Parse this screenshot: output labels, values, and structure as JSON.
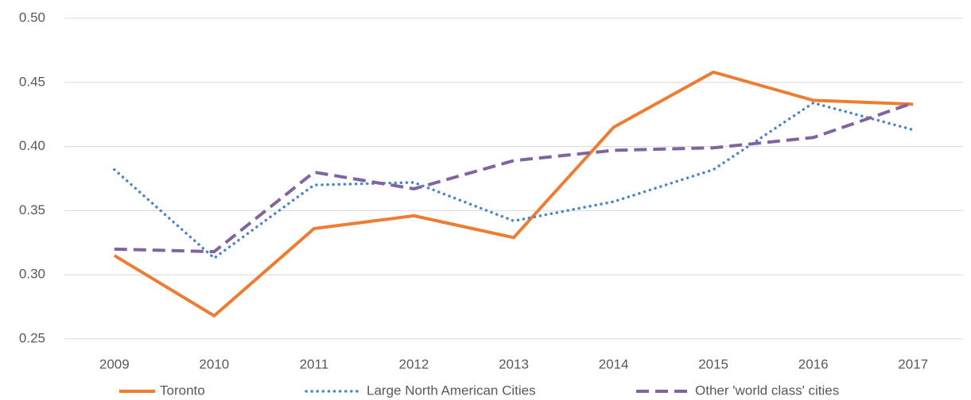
{
  "chart_data": {
    "type": "line",
    "categories": [
      "2009",
      "2010",
      "2011",
      "2012",
      "2013",
      "2014",
      "2015",
      "2016",
      "2017"
    ],
    "series": [
      {
        "name": "Toronto",
        "color": "#ed7d31",
        "dash": "solid",
        "values": [
          0.315,
          0.268,
          0.336,
          0.346,
          0.329,
          0.415,
          0.458,
          0.436,
          0.433
        ]
      },
      {
        "name": "Large North American Cities",
        "color": "#4a86c5",
        "dash": "dotted",
        "values": [
          0.382,
          0.313,
          0.37,
          0.372,
          0.342,
          0.357,
          0.382,
          0.434,
          0.413
        ]
      },
      {
        "name": "Other 'world class' cities",
        "color": "#8064a2",
        "dash": "dashed",
        "values": [
          0.32,
          0.318,
          0.38,
          0.367,
          0.389,
          0.397,
          0.399,
          0.407,
          0.434
        ]
      }
    ],
    "ylim": [
      0.25,
      0.5
    ],
    "yticks": [
      {
        "value": 0.25,
        "label": "0.25"
      },
      {
        "value": 0.3,
        "label": "0.30"
      },
      {
        "value": 0.35,
        "label": "0.35"
      },
      {
        "value": 0.4,
        "label": "0.40"
      },
      {
        "value": 0.45,
        "label": "0.45"
      },
      {
        "value": 0.5,
        "label": "0.50"
      }
    ],
    "grid": true,
    "legend": "bottom"
  }
}
